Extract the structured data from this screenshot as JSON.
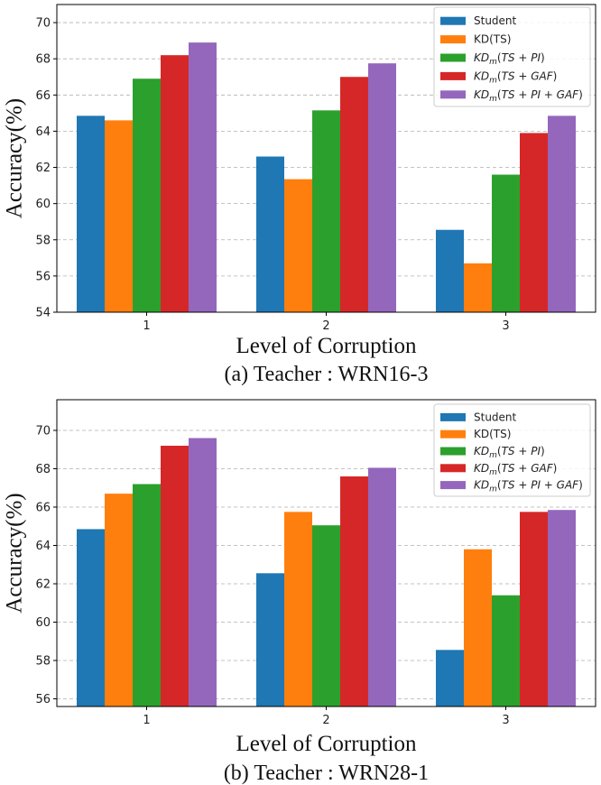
{
  "chart_data": [
    {
      "type": "bar",
      "caption": "(a) Teacher : WRN16-3",
      "xlabel": "Level of Corruption",
      "ylabel": "Accuracy(%)",
      "categories": [
        "1",
        "2",
        "3"
      ],
      "ylim": [
        54,
        71
      ],
      "yticks": [
        54,
        56,
        58,
        60,
        62,
        64,
        66,
        68,
        70
      ],
      "grid": "horizontal dashed",
      "legend_position": "top-right",
      "series": [
        {
          "name": "Student",
          "values": [
            64.85,
            62.6,
            58.55
          ]
        },
        {
          "name": "KD(TS)",
          "values": [
            64.6,
            61.35,
            56.7
          ]
        },
        {
          "name": "KD_m(TS + PI)",
          "values": [
            66.9,
            65.15,
            61.6
          ]
        },
        {
          "name": "KD_m(TS + GAF)",
          "values": [
            68.2,
            67.0,
            63.9
          ]
        },
        {
          "name": "KD_m(TS + PI + GAF)",
          "values": [
            68.9,
            67.75,
            64.85
          ]
        }
      ]
    },
    {
      "type": "bar",
      "caption": "(b) Teacher : WRN28-1",
      "xlabel": "Level of Corruption",
      "ylabel": "Accuracy(%)",
      "categories": [
        "1",
        "2",
        "3"
      ],
      "ylim": [
        55.6,
        71.6
      ],
      "yticks": [
        56,
        58,
        60,
        62,
        64,
        66,
        68,
        70
      ],
      "grid": "horizontal dashed",
      "legend_position": "top-right",
      "series": [
        {
          "name": "Student",
          "values": [
            64.85,
            62.55,
            58.55
          ]
        },
        {
          "name": "KD(TS)",
          "values": [
            66.7,
            65.75,
            63.8
          ]
        },
        {
          "name": "KD_m(TS + PI)",
          "values": [
            67.2,
            65.05,
            61.4
          ]
        },
        {
          "name": "KD_m(TS + GAF)",
          "values": [
            69.2,
            67.6,
            65.75
          ]
        },
        {
          "name": "KD_m(TS + PI + GAF)",
          "values": [
            69.6,
            68.05,
            65.85
          ]
        }
      ]
    }
  ],
  "colors": [
    "#1f77b4",
    "#ff7f0e",
    "#2ca02c",
    "#d62728",
    "#9467bd"
  ]
}
